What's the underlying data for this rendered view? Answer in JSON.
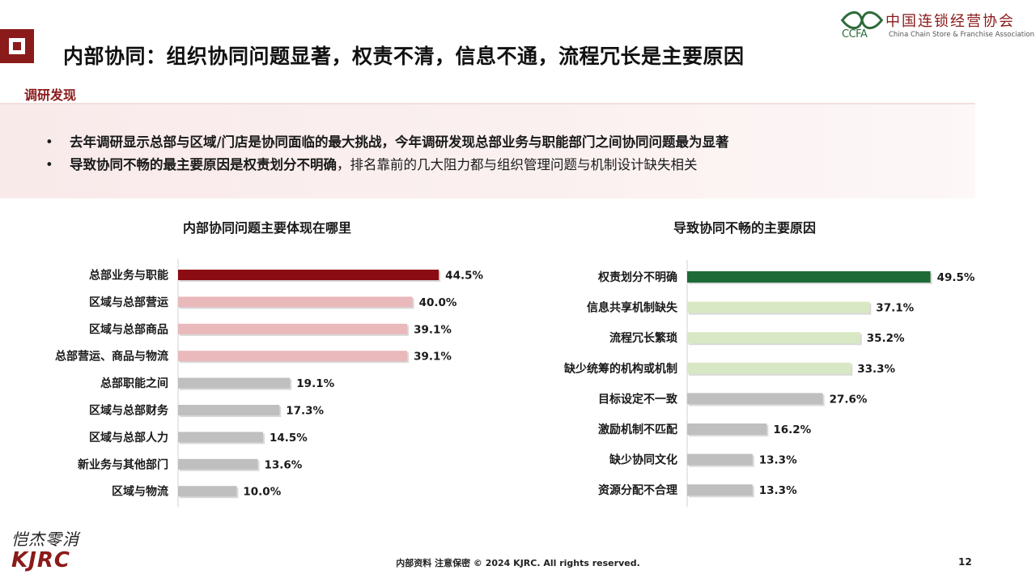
{
  "header": {
    "title": "内部协同：组织协同问题显著，权责不清，信息不通，流程冗长是主要原因",
    "logo_cn": "中国连锁经营协会",
    "logo_en": "China Chain Store & Franchise Association",
    "logo_abbr": "CCFA"
  },
  "findings": {
    "label": "调研发现",
    "items": [
      {
        "strong": "去年调研显示总部与区域/门店是协同面临的最大挑战，今年调研发现总部业务与职能部门之间协同问题最为显著",
        "rest": ""
      },
      {
        "strong": "导致协同不畅的最主要原因是权责划分不明确",
        "rest": "，排名靠前的几大阻力都与组织管理问题与机制设计缺失相关"
      }
    ]
  },
  "chart_data": [
    {
      "type": "bar",
      "orientation": "horizontal",
      "title": "内部协同问题主要体现在哪里",
      "categories": [
        "总部业务与职能",
        "区域与总部营运",
        "区域与总部商品",
        "总部营运、商品与物流",
        "总部职能之间",
        "区域与总部财务",
        "区域与总部人力",
        "新业务与其他部门",
        "区域与物流"
      ],
      "values": [
        44.5,
        40.0,
        39.1,
        39.1,
        19.1,
        17.3,
        14.5,
        13.6,
        10.0
      ],
      "value_labels": [
        "44.5%",
        "40.0%",
        "39.1%",
        "39.1%",
        "19.1%",
        "17.3%",
        "14.5%",
        "13.6%",
        "10.0%"
      ],
      "colors": [
        "#8b0d13",
        "#e9b9bb",
        "#e9b9bb",
        "#e9b9bb",
        "#bfbfbf",
        "#bfbfbf",
        "#bfbfbf",
        "#bfbfbf",
        "#bfbfbf"
      ],
      "xlim": [
        0,
        50
      ],
      "unit": "%",
      "grid": false
    },
    {
      "type": "bar",
      "orientation": "horizontal",
      "title": "导致协同不畅的主要原因",
      "categories": [
        "权责划分不明确",
        "信息共享机制缺失",
        "流程冗长繁琐",
        "缺少统筹的机构或机制",
        "目标设定不一致",
        "激励机制不匹配",
        "缺少协同文化",
        "资源分配不合理"
      ],
      "values": [
        49.5,
        37.1,
        35.2,
        33.3,
        27.6,
        16.2,
        13.3,
        13.3
      ],
      "value_labels": [
        "49.5%",
        "37.1%",
        "35.2%",
        "33.3%",
        "27.6%",
        "16.2%",
        "13.3%",
        "13.3%"
      ],
      "colors": [
        "#1e6b37",
        "#d9e8c4",
        "#d9e8c4",
        "#d9e8c4",
        "#bfbfbf",
        "#bfbfbf",
        "#bfbfbf",
        "#bfbfbf"
      ],
      "xlim": [
        0,
        55
      ],
      "unit": "%",
      "grid": false
    }
  ],
  "footer": {
    "text": "内部资料 注意保密 © 2024 KJRC. All rights reserved.",
    "page": "12",
    "brand_cn": "恺杰零消",
    "brand_en": "KJRC"
  }
}
